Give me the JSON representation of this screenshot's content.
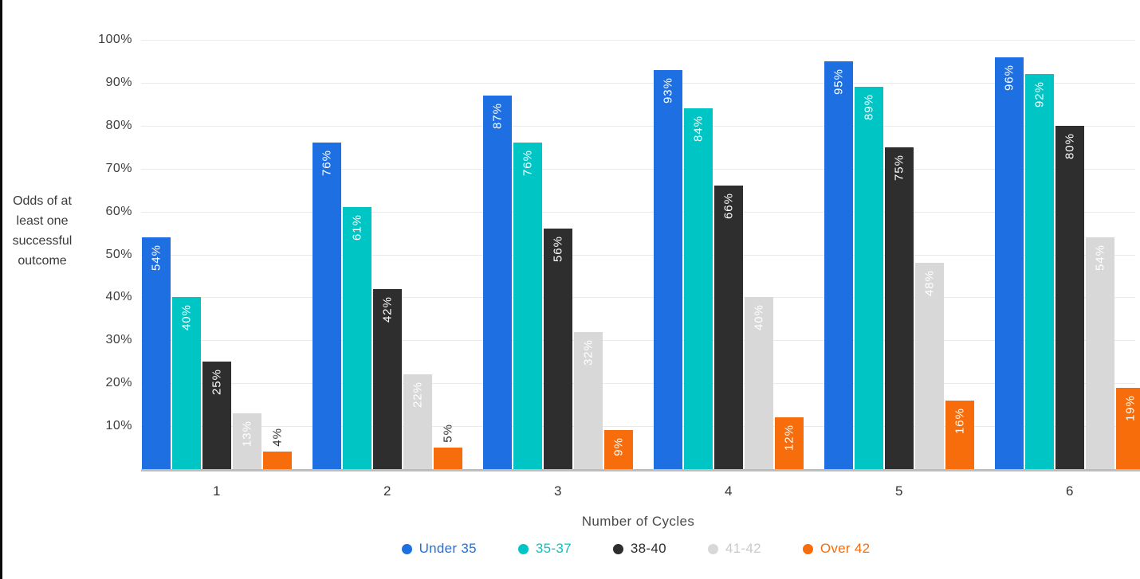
{
  "chart_data": {
    "type": "bar",
    "title": "",
    "xlabel": "Number of Cycles",
    "ylabel": "Odds of at least one successful outcome",
    "ylabel_lines": [
      "Odds of at",
      "least one",
      "successful",
      "outcome"
    ],
    "categories": [
      "1",
      "2",
      "3",
      "4",
      "5",
      "6"
    ],
    "series": [
      {
        "name": "Under 35",
        "color": "#1E70E2",
        "legend_text_color": "#1E70E2",
        "values": [
          54,
          76,
          87,
          93,
          95,
          96
        ]
      },
      {
        "name": "35-37",
        "color": "#00C5C5",
        "legend_text_color": "#00C5C5",
        "values": [
          40,
          61,
          76,
          84,
          89,
          92
        ]
      },
      {
        "name": "38-40",
        "color": "#2E2E2E",
        "legend_text_color": "#2E2E2E",
        "values": [
          25,
          42,
          56,
          66,
          75,
          80
        ]
      },
      {
        "name": "41-42",
        "color": "#D8D8D8",
        "legend_text_color": "#C9C9C9",
        "values": [
          13,
          22,
          32,
          40,
          48,
          54
        ]
      },
      {
        "name": "Over 42",
        "color": "#F76C0B",
        "legend_text_color": "#F76C0B",
        "values": [
          4,
          5,
          9,
          12,
          16,
          19
        ]
      }
    ],
    "value_suffix": "%",
    "y_ticks": [
      "100%",
      "90%",
      "80%",
      "70%",
      "60%",
      "50%",
      "40%",
      "30%",
      "20%",
      "10%"
    ],
    "ylim": [
      0,
      100
    ],
    "grid": true,
    "legend_position": "bottom",
    "label_style": {
      "inside_color": "#FFFFFF",
      "outside_color": "#2E2E2E",
      "outside_below_pct": 9
    }
  }
}
